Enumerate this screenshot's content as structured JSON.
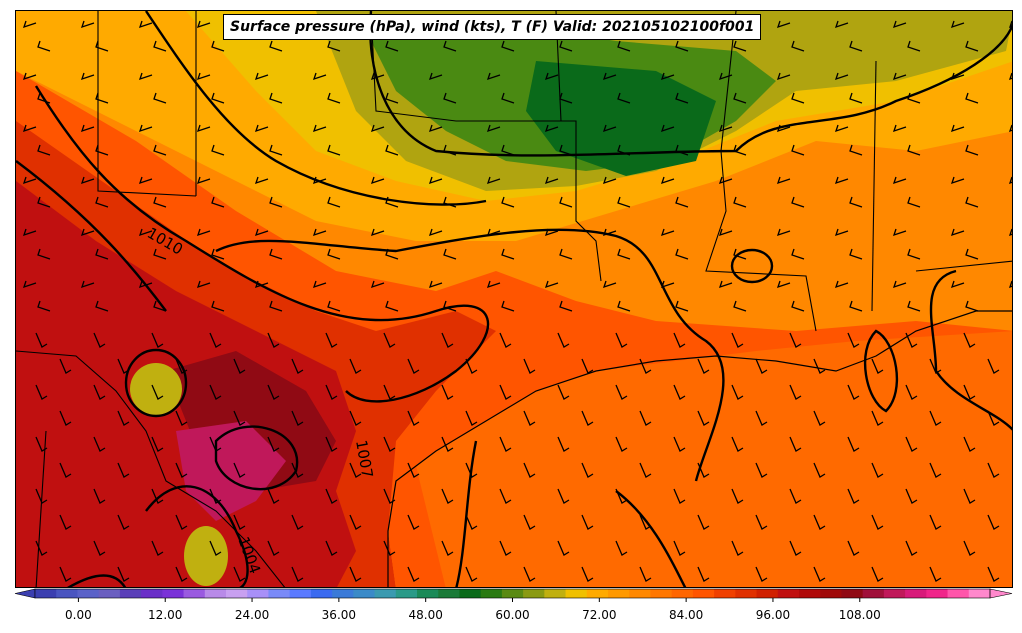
{
  "title": "Surface pressure (hPa), wind (kts), T (F) Valid: 202105102100f001",
  "isobar_labels": [
    "1010",
    "1007",
    "1004"
  ],
  "colorbar": {
    "tick_labels": [
      "0.00",
      "12.00",
      "24.00",
      "36.00",
      "48.00",
      "60.00",
      "72.00",
      "84.00",
      "96.00",
      "108.00"
    ],
    "colors": [
      "#3b3fb0",
      "#4a55c0",
      "#5a62c8",
      "#6a5fc0",
      "#5a3fb8",
      "#6a2fc8",
      "#7a32d8",
      "#9a5ae0",
      "#b88ae8",
      "#c8a0f0",
      "#a890f8",
      "#7a8af8",
      "#5a7aff",
      "#3a6af0",
      "#3a7ad8",
      "#3a8ac8",
      "#3a9ab0",
      "#2a9a88",
      "#1a8a58",
      "#1a7a38",
      "#0a6a1a",
      "#2a7a12",
      "#5a8a12",
      "#8a9a12",
      "#c0b010",
      "#f0c000",
      "#ffaa00",
      "#ff9900",
      "#ff8800",
      "#ff7700",
      "#ff6600",
      "#ff5500",
      "#f04000",
      "#e03000",
      "#d02000",
      "#c01010",
      "#b00a0a",
      "#a00a0a",
      "#900a14",
      "#a0103a",
      "#c0185a",
      "#d81a7a",
      "#f0258a",
      "#ff55aa",
      "#ff88cc"
    ]
  }
}
